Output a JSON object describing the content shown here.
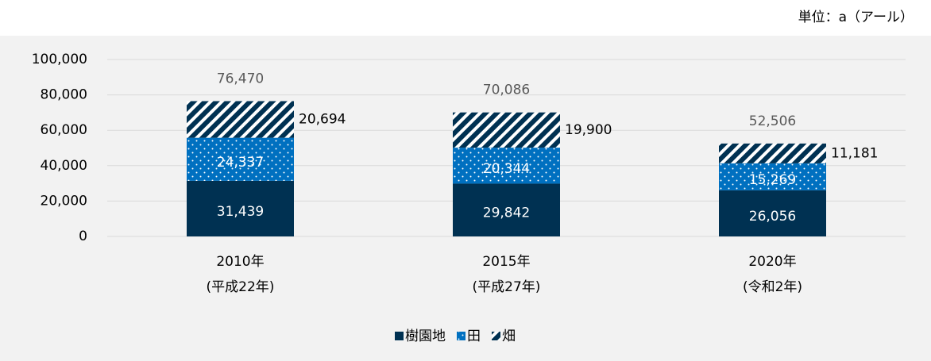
{
  "chart_data": {
    "type": "stacked_bar",
    "unit_label": "単位：a（アール）",
    "categories": [
      [
        "2010年",
        "(平成22年)"
      ],
      [
        "2015年",
        "(平成27年)"
      ],
      [
        "2020年",
        "(令和2年)"
      ]
    ],
    "series": [
      {
        "name": "樹園地",
        "color": "#003152",
        "pattern": "solid",
        "values": [
          31439,
          29842,
          26056
        ],
        "value_labels": [
          "31,439",
          "29,842",
          "26,056"
        ]
      },
      {
        "name": "田",
        "color": "#0070c0",
        "pattern": "dots",
        "values": [
          24337,
          20344,
          15269
        ],
        "value_labels": [
          "24,337",
          "20,344",
          "15,269"
        ]
      },
      {
        "name": "畑",
        "color": "#003152",
        "pattern": "hatch",
        "values": [
          20694,
          19900,
          11181
        ],
        "value_labels": [
          "20,694",
          "19,900",
          "11,181"
        ]
      }
    ],
    "totals": [
      76470,
      70086,
      52506
    ],
    "total_labels": [
      "76,470",
      "70,086",
      "52,506"
    ],
    "ylim": [
      0,
      100000
    ],
    "yticks": [
      0,
      {
        "value": 20000,
        "label": "20,000"
      },
      {
        "value": 40000,
        "label": "40,000"
      },
      {
        "value": 60000,
        "label": "60,000"
      },
      {
        "value": 80000,
        "label": "80,000"
      },
      {
        "value": 100000,
        "label": "100,000"
      }
    ],
    "grid": true,
    "legend": "bottom"
  }
}
